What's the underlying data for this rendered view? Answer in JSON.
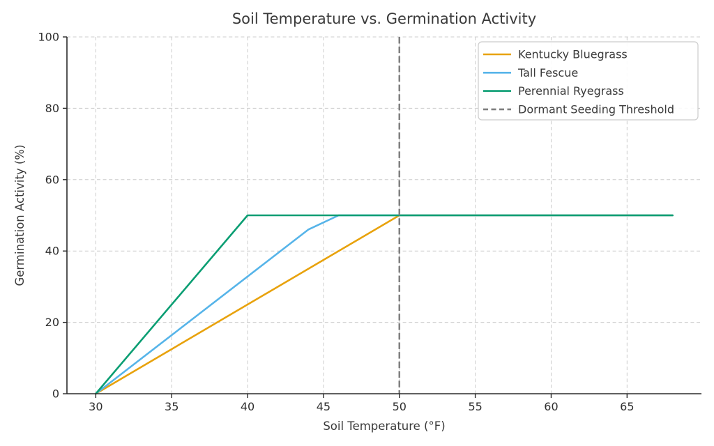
{
  "chart_data": {
    "type": "line",
    "title": "Soil Temperature vs. Germination Activity",
    "xlabel": "Soil Temperature (°F)",
    "ylabel": "Germination Activity (%)",
    "xlim": [
      28.1,
      69.9
    ],
    "ylim": [
      0,
      100
    ],
    "xticks": [
      30,
      35,
      40,
      45,
      50,
      55,
      60,
      65
    ],
    "yticks": [
      0,
      20,
      40,
      60,
      80,
      100
    ],
    "grid": "dashed-both-axes",
    "legend_position": "upper right",
    "series": [
      {
        "name": "Kentucky Bluegrass",
        "color": "#E8A20C",
        "style": "solid",
        "x": [
          30,
          50,
          68
        ],
        "y": [
          0,
          50,
          50
        ]
      },
      {
        "name": "Tall Fescue",
        "color": "#56B4E9",
        "style": "solid",
        "x": [
          30,
          44,
          46,
          68
        ],
        "y": [
          0,
          46,
          50,
          50
        ]
      },
      {
        "name": "Perennial Ryegrass",
        "color": "#0B9E73",
        "style": "solid",
        "x": [
          30,
          40,
          68
        ],
        "y": [
          0,
          50,
          50
        ]
      }
    ],
    "threshold_line": {
      "name": "Dormant Seeding Threshold",
      "x": 50,
      "color": "#7F7F7F",
      "style": "dashed"
    }
  },
  "colors": {
    "grid": "#CCCCCC",
    "spine": "#2B2B2B",
    "tick": "#2B2B2B",
    "text": "#3A3A3A",
    "background": "#FFFFFF",
    "legend_border": "#CCCCCC"
  }
}
